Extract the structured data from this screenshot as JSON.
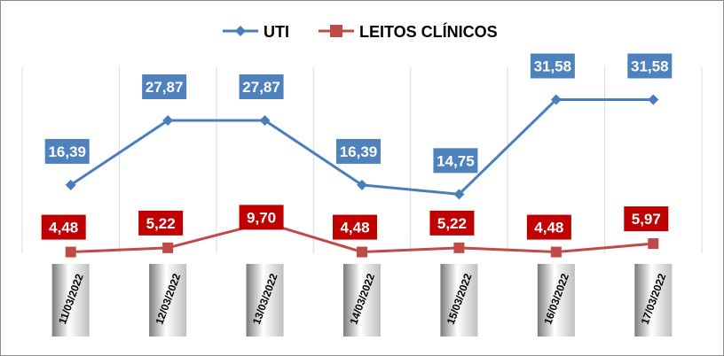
{
  "chart_data": {
    "type": "line",
    "title": "",
    "xlabel": "",
    "ylabel": "",
    "categories": [
      "11/03/2022",
      "12/03/2022",
      "13/03/2022",
      "14/03/2022",
      "15/03/2022",
      "16/03/2022",
      "17/03/2022"
    ],
    "series": [
      {
        "name": "UTI",
        "values": [
          16.39,
          27.87,
          27.87,
          16.39,
          14.75,
          31.58,
          31.58
        ],
        "labels": [
          "16,39",
          "27,87",
          "27,87",
          "16,39",
          "14,75",
          "31,58",
          "31,58"
        ],
        "color": "#4a7ebb",
        "marker": "diamond"
      },
      {
        "name": "LEITOS CLÍNICOS",
        "values": [
          4.48,
          5.22,
          9.7,
          4.48,
          5.22,
          4.48,
          5.97
        ],
        "labels": [
          "4,48",
          "5,22",
          "9,70",
          "4,48",
          "5,22",
          "4,48",
          "5,97"
        ],
        "color": "#be4b48",
        "marker": "square"
      }
    ],
    "label_box_colors": [
      "#4f81bd",
      "#c00000"
    ],
    "legend_position": "top",
    "grid": "vertical",
    "ylim": [
      0,
      40
    ]
  }
}
